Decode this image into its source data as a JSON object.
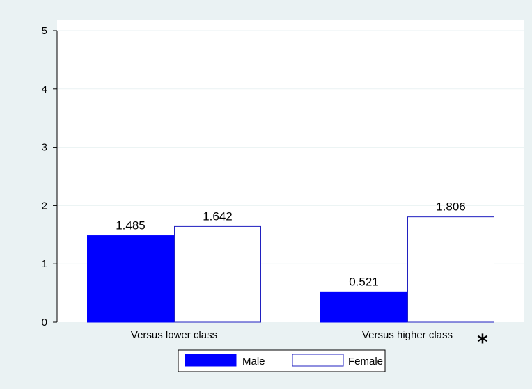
{
  "chart_data": {
    "type": "bar",
    "categories": [
      "Versus lower class",
      "Versus higher class"
    ],
    "category_annotations": [
      "",
      "*"
    ],
    "series": [
      {
        "name": "Male",
        "values": [
          1.485,
          0.521
        ],
        "labels": [
          "1.485",
          "0.521"
        ],
        "fill": "#0000ff",
        "stroke": "#0000ff"
      },
      {
        "name": "Female",
        "values": [
          1.642,
          1.806
        ],
        "labels": [
          "1.642",
          "1.806"
        ],
        "fill": "#ffffff",
        "stroke": "#2020c0"
      }
    ],
    "ylim": [
      0,
      5
    ],
    "yticks": [
      0,
      1,
      2,
      3,
      4,
      5
    ],
    "grid": true,
    "legend_position": "bottom",
    "colors": {
      "background": "#eaf2f3",
      "plot_area": "#ffffff",
      "grid": "#eaf2f3",
      "axis": "#000000"
    }
  }
}
